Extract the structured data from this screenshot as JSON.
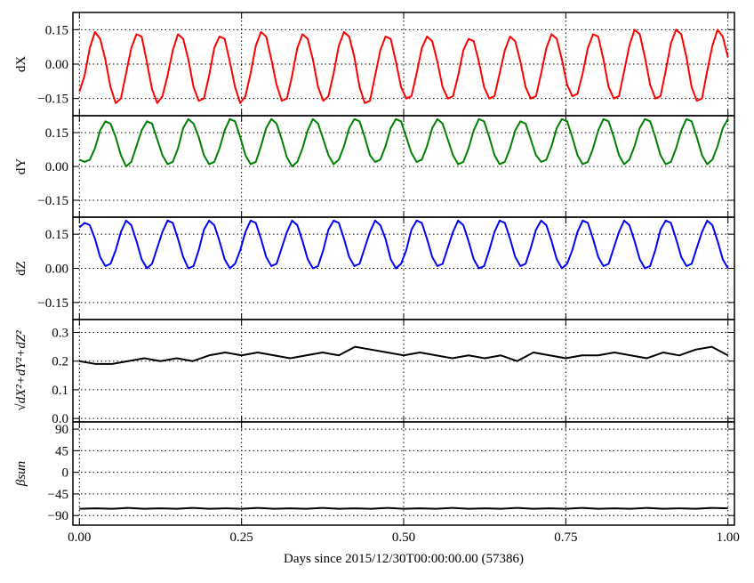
{
  "chart_data": [
    {
      "type": "line",
      "ylabel": "dX",
      "xlim": [
        -0.01,
        1.01
      ],
      "ylim": [
        -0.225,
        0.225
      ],
      "xticks": [
        {
          "value": 0,
          "label": "0.00"
        },
        0.25,
        {
          "value": 0.5,
          "label": "0.50"
        },
        0.75,
        {
          "value": 1,
          "label": "1.00"
        }
      ],
      "yticks": [
        {
          "value": -0.15,
          "label": "−0.15"
        },
        {
          "value": 0,
          "label": "0.00"
        },
        0.15
      ],
      "grid": true,
      "x": [
        0,
        0.008,
        0.016,
        0.024,
        0.032,
        0.04,
        0.048,
        0.056,
        0.064,
        0.072,
        0.08,
        0.088,
        0.096,
        0.104,
        0.112,
        0.12,
        0.128,
        0.136,
        0.144,
        0.152,
        0.16,
        0.168,
        0.176,
        0.184,
        0.192,
        0.2,
        0.208,
        0.216,
        0.224,
        0.232,
        0.24,
        0.248,
        0.256,
        0.264,
        0.272,
        0.28,
        0.288,
        0.296,
        0.304,
        0.312,
        0.32,
        0.328,
        0.336,
        0.344,
        0.352,
        0.36,
        0.368,
        0.376,
        0.384,
        0.392,
        0.4,
        0.408,
        0.416,
        0.424,
        0.432,
        0.44,
        0.448,
        0.456,
        0.464,
        0.472,
        0.48,
        0.488,
        0.496,
        0.504,
        0.512,
        0.52,
        0.528,
        0.536,
        0.544,
        0.552,
        0.56,
        0.568,
        0.576,
        0.584,
        0.592,
        0.6,
        0.608,
        0.616,
        0.624,
        0.632,
        0.64,
        0.648,
        0.656,
        0.664,
        0.672,
        0.68,
        0.688,
        0.696,
        0.704,
        0.712,
        0.72,
        0.728,
        0.736,
        0.744,
        0.752,
        0.76,
        0.768,
        0.776,
        0.784,
        0.792,
        0.8,
        0.808,
        0.816,
        0.824,
        0.832,
        0.84,
        0.848,
        0.856,
        0.864,
        0.872,
        0.88,
        0.888,
        0.896,
        0.904,
        0.912,
        0.92,
        0.928,
        0.936,
        0.944,
        0.952,
        0.96,
        0.968,
        0.976,
        0.984,
        0.992,
        1.0
      ],
      "series": [
        {
          "color": "#ff0000",
          "values": [
            -0.12,
            -0.05,
            0.07,
            0.14,
            0.11,
            0.02,
            -0.1,
            -0.17,
            -0.15,
            -0.04,
            0.07,
            0.13,
            0.12,
            0.01,
            -0.11,
            -0.17,
            -0.14,
            -0.05,
            0.06,
            0.13,
            0.11,
            0.02,
            -0.1,
            -0.16,
            -0.15,
            -0.05,
            0.07,
            0.12,
            0.11,
            0.01,
            -0.1,
            -0.17,
            -0.14,
            -0.04,
            0.08,
            0.14,
            0.12,
            0.02,
            -0.09,
            -0.16,
            -0.15,
            -0.05,
            0.07,
            0.13,
            0.11,
            0.02,
            -0.1,
            -0.16,
            -0.14,
            -0.04,
            0.08,
            0.14,
            0.12,
            0.03,
            -0.1,
            -0.17,
            -0.16,
            -0.05,
            0.06,
            0.12,
            0.11,
            0.01,
            -0.1,
            -0.15,
            -0.14,
            -0.04,
            0.07,
            0.12,
            0.1,
            0.01,
            -0.1,
            -0.15,
            -0.14,
            -0.05,
            0.06,
            0.11,
            0.1,
            0.01,
            -0.1,
            -0.15,
            -0.14,
            -0.04,
            0.06,
            0.12,
            0.1,
            0.01,
            -0.1,
            -0.15,
            -0.14,
            -0.04,
            0.07,
            0.13,
            0.11,
            0.02,
            -0.09,
            -0.14,
            -0.13,
            -0.04,
            0.07,
            0.13,
            0.12,
            0.02,
            -0.1,
            -0.15,
            -0.14,
            -0.03,
            0.08,
            0.15,
            0.13,
            0.03,
            -0.09,
            -0.15,
            -0.14,
            -0.03,
            0.09,
            0.15,
            0.13,
            0.03,
            -0.1,
            -0.16,
            -0.15,
            -0.03,
            0.08,
            0.15,
            0.12,
            0.03
          ]
        }
      ]
    },
    {
      "type": "line",
      "ylabel": "dY",
      "xlim": [
        -0.01,
        1.01
      ],
      "ylim": [
        -0.225,
        0.225
      ],
      "xticks": [
        {
          "value": 0,
          "label": "0.00"
        },
        0.25,
        {
          "value": 0.5,
          "label": "0.50"
        },
        0.75,
        {
          "value": 1,
          "label": "1.00"
        }
      ],
      "yticks": [
        {
          "value": -0.15,
          "label": "−0.15"
        },
        {
          "value": 0,
          "label": "0.00"
        },
        0.15
      ],
      "grid": true,
      "x": [
        0,
        0.008,
        0.016,
        0.024,
        0.032,
        0.04,
        0.048,
        0.056,
        0.064,
        0.072,
        0.08,
        0.088,
        0.096,
        0.104,
        0.112,
        0.12,
        0.128,
        0.136,
        0.144,
        0.152,
        0.16,
        0.168,
        0.176,
        0.184,
        0.192,
        0.2,
        0.208,
        0.216,
        0.224,
        0.232,
        0.24,
        0.248,
        0.256,
        0.264,
        0.272,
        0.28,
        0.288,
        0.296,
        0.304,
        0.312,
        0.32,
        0.328,
        0.336,
        0.344,
        0.352,
        0.36,
        0.368,
        0.376,
        0.384,
        0.392,
        0.4,
        0.408,
        0.416,
        0.424,
        0.432,
        0.44,
        0.448,
        0.456,
        0.464,
        0.472,
        0.48,
        0.488,
        0.496,
        0.504,
        0.512,
        0.52,
        0.528,
        0.536,
        0.544,
        0.552,
        0.56,
        0.568,
        0.576,
        0.584,
        0.592,
        0.6,
        0.608,
        0.616,
        0.624,
        0.632,
        0.64,
        0.648,
        0.656,
        0.664,
        0.672,
        0.68,
        0.688,
        0.696,
        0.704,
        0.712,
        0.72,
        0.728,
        0.736,
        0.744,
        0.752,
        0.76,
        0.768,
        0.776,
        0.784,
        0.792,
        0.8,
        0.808,
        0.816,
        0.824,
        0.832,
        0.84,
        0.848,
        0.856,
        0.864,
        0.872,
        0.88,
        0.888,
        0.896,
        0.904,
        0.912,
        0.92,
        0.928,
        0.936,
        0.944,
        0.952,
        0.96,
        0.968,
        0.976,
        0.984,
        0.992,
        1.0
      ],
      "series": [
        {
          "color": "#008000",
          "values": [
            0.03,
            0.02,
            0.03,
            0.08,
            0.16,
            0.2,
            0.19,
            0.13,
            0.05,
            0.0,
            0.02,
            0.09,
            0.16,
            0.2,
            0.19,
            0.12,
            0.05,
            0.01,
            0.02,
            0.08,
            0.17,
            0.21,
            0.19,
            0.13,
            0.05,
            0.01,
            0.02,
            0.08,
            0.16,
            0.21,
            0.2,
            0.13,
            0.05,
            0.01,
            0.02,
            0.09,
            0.17,
            0.21,
            0.19,
            0.12,
            0.04,
            0.0,
            0.02,
            0.08,
            0.16,
            0.21,
            0.19,
            0.12,
            0.05,
            0.01,
            0.03,
            0.09,
            0.17,
            0.21,
            0.2,
            0.13,
            0.05,
            0.02,
            0.03,
            0.09,
            0.17,
            0.21,
            0.2,
            0.13,
            0.06,
            0.02,
            0.03,
            0.09,
            0.17,
            0.21,
            0.19,
            0.12,
            0.05,
            0.01,
            0.02,
            0.08,
            0.16,
            0.21,
            0.2,
            0.13,
            0.05,
            0.01,
            0.02,
            0.08,
            0.16,
            0.2,
            0.19,
            0.12,
            0.05,
            0.02,
            0.03,
            0.09,
            0.17,
            0.21,
            0.2,
            0.13,
            0.05,
            0.01,
            0.02,
            0.08,
            0.16,
            0.21,
            0.2,
            0.13,
            0.05,
            0.01,
            0.03,
            0.09,
            0.17,
            0.21,
            0.2,
            0.13,
            0.05,
            0.01,
            0.02,
            0.08,
            0.16,
            0.21,
            0.2,
            0.13,
            0.05,
            0.01,
            0.03,
            0.09,
            0.17,
            0.21
          ]
        }
      ]
    },
    {
      "type": "line",
      "ylabel": "dZ",
      "xlim": [
        -0.01,
        1.01
      ],
      "ylim": [
        -0.225,
        0.225
      ],
      "xticks": [
        {
          "value": 0,
          "label": "0.00"
        },
        0.25,
        {
          "value": 0.5,
          "label": "0.50"
        },
        0.75,
        {
          "value": 1,
          "label": "1.00"
        }
      ],
      "yticks": [
        {
          "value": -0.15,
          "label": "−0.15"
        },
        {
          "value": 0,
          "label": "0.00"
        },
        0.15
      ],
      "grid": true,
      "x": [
        0,
        0.008,
        0.016,
        0.024,
        0.032,
        0.04,
        0.048,
        0.056,
        0.064,
        0.072,
        0.08,
        0.088,
        0.096,
        0.104,
        0.112,
        0.12,
        0.128,
        0.136,
        0.144,
        0.152,
        0.16,
        0.168,
        0.176,
        0.184,
        0.192,
        0.2,
        0.208,
        0.216,
        0.224,
        0.232,
        0.24,
        0.248,
        0.256,
        0.264,
        0.272,
        0.28,
        0.288,
        0.296,
        0.304,
        0.312,
        0.32,
        0.328,
        0.336,
        0.344,
        0.352,
        0.36,
        0.368,
        0.376,
        0.384,
        0.392,
        0.4,
        0.408,
        0.416,
        0.424,
        0.432,
        0.44,
        0.448,
        0.456,
        0.464,
        0.472,
        0.48,
        0.488,
        0.496,
        0.504,
        0.512,
        0.52,
        0.528,
        0.536,
        0.544,
        0.552,
        0.56,
        0.568,
        0.576,
        0.584,
        0.592,
        0.6,
        0.608,
        0.616,
        0.624,
        0.632,
        0.64,
        0.648,
        0.656,
        0.664,
        0.672,
        0.68,
        0.688,
        0.696,
        0.704,
        0.712,
        0.72,
        0.728,
        0.736,
        0.744,
        0.752,
        0.76,
        0.768,
        0.776,
        0.784,
        0.792,
        0.8,
        0.808,
        0.816,
        0.824,
        0.832,
        0.84,
        0.848,
        0.856,
        0.864,
        0.872,
        0.88,
        0.888,
        0.896,
        0.904,
        0.912,
        0.92,
        0.928,
        0.936,
        0.944,
        0.952,
        0.96,
        0.968,
        0.976,
        0.984,
        0.992,
        1.0
      ],
      "series": [
        {
          "color": "#0000ff",
          "values": [
            0.18,
            0.2,
            0.19,
            0.13,
            0.05,
            0.01,
            0.02,
            0.08,
            0.16,
            0.21,
            0.19,
            0.12,
            0.04,
            0.0,
            0.02,
            0.09,
            0.16,
            0.21,
            0.2,
            0.13,
            0.05,
            0.0,
            0.01,
            0.08,
            0.17,
            0.21,
            0.19,
            0.12,
            0.04,
            0.0,
            0.02,
            0.08,
            0.16,
            0.21,
            0.2,
            0.13,
            0.05,
            0.01,
            0.02,
            0.09,
            0.16,
            0.21,
            0.19,
            0.12,
            0.04,
            0.0,
            0.01,
            0.08,
            0.17,
            0.21,
            0.2,
            0.13,
            0.05,
            0.01,
            0.02,
            0.09,
            0.16,
            0.21,
            0.19,
            0.13,
            0.04,
            0.0,
            0.02,
            0.08,
            0.17,
            0.21,
            0.2,
            0.13,
            0.05,
            0.01,
            0.02,
            0.09,
            0.16,
            0.21,
            0.19,
            0.12,
            0.04,
            0.0,
            0.01,
            0.08,
            0.16,
            0.21,
            0.2,
            0.13,
            0.05,
            0.01,
            0.02,
            0.09,
            0.17,
            0.21,
            0.19,
            0.12,
            0.04,
            0.0,
            0.02,
            0.08,
            0.16,
            0.21,
            0.2,
            0.13,
            0.05,
            0.01,
            0.02,
            0.09,
            0.16,
            0.21,
            0.19,
            0.12,
            0.04,
            0.0,
            0.01,
            0.08,
            0.17,
            0.21,
            0.2,
            0.13,
            0.05,
            0.01,
            0.02,
            0.09,
            0.16,
            0.21,
            0.19,
            0.12,
            0.04,
            0.0
          ]
        }
      ]
    },
    {
      "type": "line",
      "ylabel": "√dX²+dY²+dZ²",
      "xlim": [
        -0.01,
        1.01
      ],
      "ylim": [
        -0.012,
        0.345
      ],
      "xticks": [
        {
          "value": 0,
          "label": "0.00"
        },
        0.25,
        {
          "value": 0.5,
          "label": "0.50"
        },
        0.75,
        {
          "value": 1,
          "label": "1.00"
        }
      ],
      "yticks": [
        {
          "value": 0,
          "label": "0.0"
        },
        0.1,
        0.2,
        0.3
      ],
      "grid": true,
      "x": [
        0,
        0.025,
        0.05,
        0.075,
        0.1,
        0.125,
        0.15,
        0.175,
        0.2,
        0.225,
        0.25,
        0.275,
        0.3,
        0.325,
        0.35,
        0.375,
        0.4,
        0.425,
        0.45,
        0.475,
        0.5,
        0.525,
        0.55,
        0.575,
        0.6,
        0.625,
        0.65,
        0.675,
        0.7,
        0.725,
        0.75,
        0.775,
        0.8,
        0.825,
        0.85,
        0.875,
        0.9,
        0.925,
        0.95,
        0.975,
        1.0
      ],
      "series": [
        {
          "color": "#000000",
          "values": [
            0.2,
            0.19,
            0.19,
            0.2,
            0.21,
            0.2,
            0.21,
            0.2,
            0.22,
            0.23,
            0.22,
            0.23,
            0.22,
            0.21,
            0.22,
            0.23,
            0.22,
            0.25,
            0.24,
            0.23,
            0.22,
            0.23,
            0.22,
            0.21,
            0.22,
            0.21,
            0.22,
            0.2,
            0.23,
            0.22,
            0.21,
            0.22,
            0.22,
            0.23,
            0.22,
            0.21,
            0.23,
            0.22,
            0.24,
            0.25,
            0.22
          ]
        }
      ]
    },
    {
      "type": "line",
      "ylabel": "βsun",
      "xlabel": "Days since 2015/12/30T00:00:00.00 (57386)",
      "xlim": [
        -0.01,
        1.01
      ],
      "ylim": [
        -110,
        105
      ],
      "xticks": [
        {
          "value": 0,
          "label": "0.00"
        },
        0.25,
        {
          "value": 0.5,
          "label": "0.50"
        },
        0.75,
        {
          "value": 1,
          "label": "1.00"
        }
      ],
      "yticks": [
        {
          "value": -90,
          "label": "−90"
        },
        {
          "value": -45,
          "label": "−45"
        },
        0,
        45,
        90
      ],
      "grid": true,
      "x": [
        0,
        0.025,
        0.05,
        0.075,
        0.1,
        0.125,
        0.15,
        0.175,
        0.2,
        0.225,
        0.25,
        0.275,
        0.3,
        0.325,
        0.35,
        0.375,
        0.4,
        0.425,
        0.45,
        0.475,
        0.5,
        0.525,
        0.55,
        0.575,
        0.6,
        0.625,
        0.65,
        0.675,
        0.7,
        0.725,
        0.75,
        0.775,
        0.8,
        0.825,
        0.85,
        0.875,
        0.9,
        0.925,
        0.95,
        0.975,
        1.0
      ],
      "series": [
        {
          "color": "#000000",
          "values": [
            -76,
            -75,
            -76,
            -74,
            -76,
            -75,
            -76,
            -74,
            -76,
            -75,
            -76,
            -74,
            -76,
            -75,
            -76,
            -74,
            -76,
            -75,
            -76,
            -74,
            -76,
            -75,
            -76,
            -74,
            -76,
            -75,
            -76,
            -74,
            -76,
            -75,
            -76,
            -74,
            -76,
            -75,
            -76,
            -74,
            -76,
            -75,
            -76,
            -74,
            -75
          ]
        }
      ]
    }
  ]
}
